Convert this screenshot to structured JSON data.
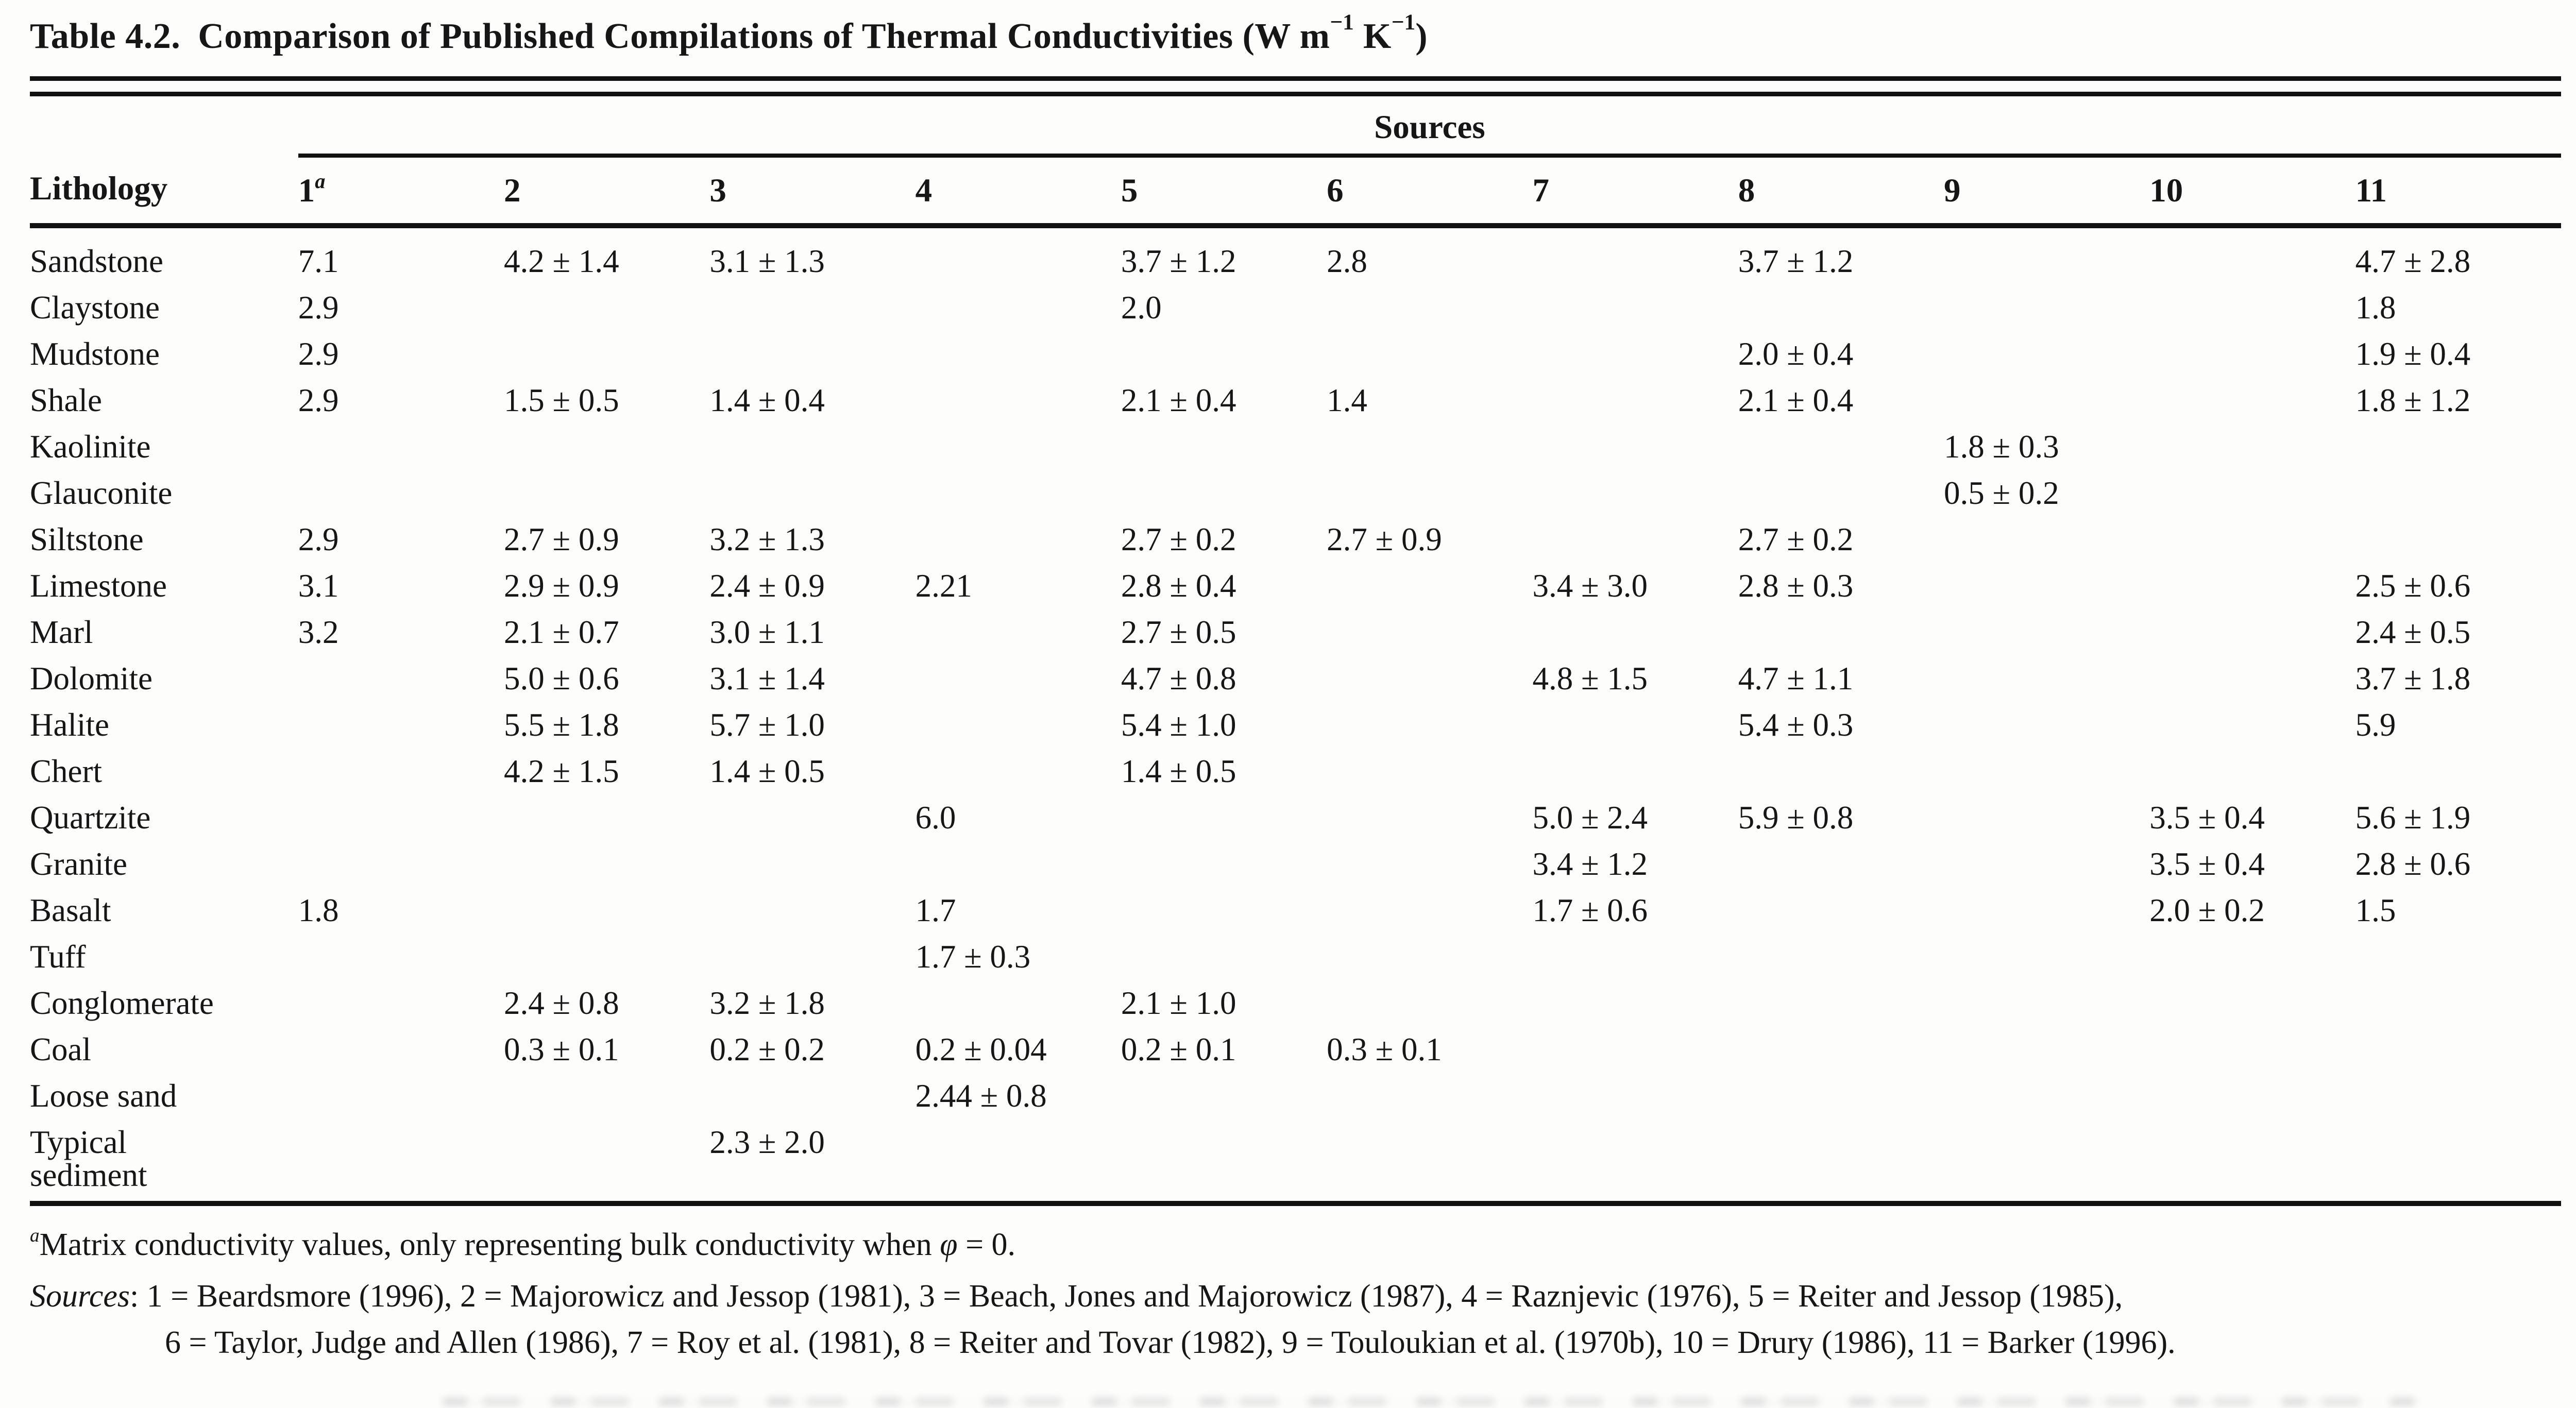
{
  "header": {
    "title_prefix": "Table 4.2.",
    "title_main": "Comparison of Published Compilations of Thermal Conductivities",
    "units": {
      "open": "(W m",
      "sup1": "−1",
      "mid": " K",
      "sup2": "−1",
      "close": ")"
    }
  },
  "table": {
    "sources_spanner": "Sources",
    "lithology_header": "Lithology",
    "columns": [
      {
        "label": "1",
        "sup": "a"
      },
      {
        "label": "2",
        "sup": ""
      },
      {
        "label": "3",
        "sup": ""
      },
      {
        "label": "4",
        "sup": ""
      },
      {
        "label": "5",
        "sup": ""
      },
      {
        "label": "6",
        "sup": ""
      },
      {
        "label": "7",
        "sup": ""
      },
      {
        "label": "8",
        "sup": ""
      },
      {
        "label": "9",
        "sup": ""
      },
      {
        "label": "10",
        "sup": ""
      },
      {
        "label": "11",
        "sup": ""
      }
    ],
    "rows": [
      {
        "lithology": "Sandstone",
        "values": [
          "7.1",
          "4.2 ± 1.4",
          "3.1 ± 1.3",
          "",
          "3.7 ± 1.2",
          "2.8",
          "",
          "3.7 ± 1.2",
          "",
          "",
          "4.7 ± 2.8"
        ]
      },
      {
        "lithology": "Claystone",
        "values": [
          "2.9",
          "",
          "",
          "",
          "2.0",
          "",
          "",
          "",
          "",
          "",
          "1.8"
        ]
      },
      {
        "lithology": "Mudstone",
        "values": [
          "2.9",
          "",
          "",
          "",
          "",
          "",
          "",
          "2.0 ± 0.4",
          "",
          "",
          "1.9 ± 0.4"
        ]
      },
      {
        "lithology": "Shale",
        "values": [
          "2.9",
          "1.5 ± 0.5",
          "1.4 ± 0.4",
          "",
          "2.1 ± 0.4",
          "1.4",
          "",
          "2.1 ± 0.4",
          "",
          "",
          "1.8 ± 1.2"
        ]
      },
      {
        "lithology": "Kaolinite",
        "values": [
          "",
          "",
          "",
          "",
          "",
          "",
          "",
          "",
          "1.8 ± 0.3",
          "",
          ""
        ]
      },
      {
        "lithology": "Glauconite",
        "values": [
          "",
          "",
          "",
          "",
          "",
          "",
          "",
          "",
          "0.5 ± 0.2",
          "",
          ""
        ]
      },
      {
        "lithology": "Siltstone",
        "values": [
          "2.9",
          "2.7 ± 0.9",
          "3.2 ± 1.3",
          "",
          "2.7 ± 0.2",
          "2.7 ± 0.9",
          "",
          "2.7 ± 0.2",
          "",
          "",
          ""
        ]
      },
      {
        "lithology": "Limestone",
        "values": [
          "3.1",
          "2.9 ± 0.9",
          "2.4 ± 0.9",
          "2.21",
          "2.8 ± 0.4",
          "",
          "3.4 ± 3.0",
          "2.8 ± 0.3",
          "",
          "",
          "2.5 ± 0.6"
        ]
      },
      {
        "lithology": "Marl",
        "values": [
          "3.2",
          "2.1 ± 0.7",
          "3.0 ± 1.1",
          "",
          "2.7 ± 0.5",
          "",
          "",
          "",
          "",
          "",
          "2.4 ± 0.5"
        ]
      },
      {
        "lithology": "Dolomite",
        "values": [
          "",
          "5.0 ± 0.6",
          "3.1 ± 1.4",
          "",
          "4.7 ± 0.8",
          "",
          "4.8 ± 1.5",
          "4.7 ± 1.1",
          "",
          "",
          "3.7 ± 1.8"
        ]
      },
      {
        "lithology": "Halite",
        "values": [
          "",
          "5.5 ± 1.8",
          "5.7 ± 1.0",
          "",
          "5.4 ± 1.0",
          "",
          "",
          "5.4 ± 0.3",
          "",
          "",
          "5.9"
        ]
      },
      {
        "lithology": "Chert",
        "values": [
          "",
          "4.2 ± 1.5",
          "1.4 ± 0.5",
          "",
          "1.4 ± 0.5",
          "",
          "",
          "",
          "",
          "",
          ""
        ]
      },
      {
        "lithology": "Quartzite",
        "values": [
          "",
          "",
          "",
          "6.0",
          "",
          "",
          "5.0 ± 2.4",
          "5.9 ± 0.8",
          "",
          "3.5 ± 0.4",
          "5.6 ± 1.9"
        ]
      },
      {
        "lithology": "Granite",
        "values": [
          "",
          "",
          "",
          "",
          "",
          "",
          "3.4 ± 1.2",
          "",
          "",
          "3.5 ± 0.4",
          "2.8 ± 0.6"
        ]
      },
      {
        "lithology": "Basalt",
        "values": [
          "1.8",
          "",
          "",
          "1.7",
          "",
          "",
          "1.7 ± 0.6",
          "",
          "",
          "2.0 ± 0.2",
          "1.5"
        ]
      },
      {
        "lithology": "Tuff",
        "values": [
          "",
          "",
          "",
          "1.7 ± 0.3",
          "",
          "",
          "",
          "",
          "",
          "",
          ""
        ]
      },
      {
        "lithology": "Conglomerate",
        "values": [
          "",
          "2.4 ± 0.8",
          "3.2 ± 1.8",
          "",
          "2.1 ± 1.0",
          "",
          "",
          "",
          "",
          "",
          ""
        ]
      },
      {
        "lithology": "Coal",
        "values": [
          "",
          "0.3 ± 0.1",
          "0.2 ± 0.2",
          "0.2 ± 0.04",
          "0.2 ± 0.1",
          "0.3 ± 0.1",
          "",
          "",
          "",
          "",
          ""
        ]
      },
      {
        "lithology": "Loose sand",
        "values": [
          "",
          "",
          "",
          "2.44 ± 0.8",
          "",
          "",
          "",
          "",
          "",
          "",
          ""
        ]
      },
      {
        "lithology": "Typical\nsediment",
        "values": [
          "",
          "",
          "2.3 ± 2.0",
          "",
          "",
          "",
          "",
          "",
          "",
          "",
          ""
        ]
      }
    ]
  },
  "footnotes": {
    "matrix_note": {
      "marker": "a",
      "before": "Matrix conductivity values, only representing bulk conductivity when ",
      "phi": "φ",
      "after": " = 0."
    },
    "sources_label": "Sources",
    "sources_separator": ": ",
    "sources_line1": "1 = Beardsmore (1996), 2 = Majorowicz and Jessop (1981), 3 = Beach, Jones and Majorowicz (1987), 4 = Raznjevic (1976), 5 = Reiter and Jessop (1985),",
    "sources_line2": "6 = Taylor, Judge and Allen (1986), 7 = Roy et al. (1981), 8 = Reiter and Tovar (1982), 9 = Touloukian et al. (1970b), 10 = Drury (1986), 11 = Barker (1996)."
  }
}
